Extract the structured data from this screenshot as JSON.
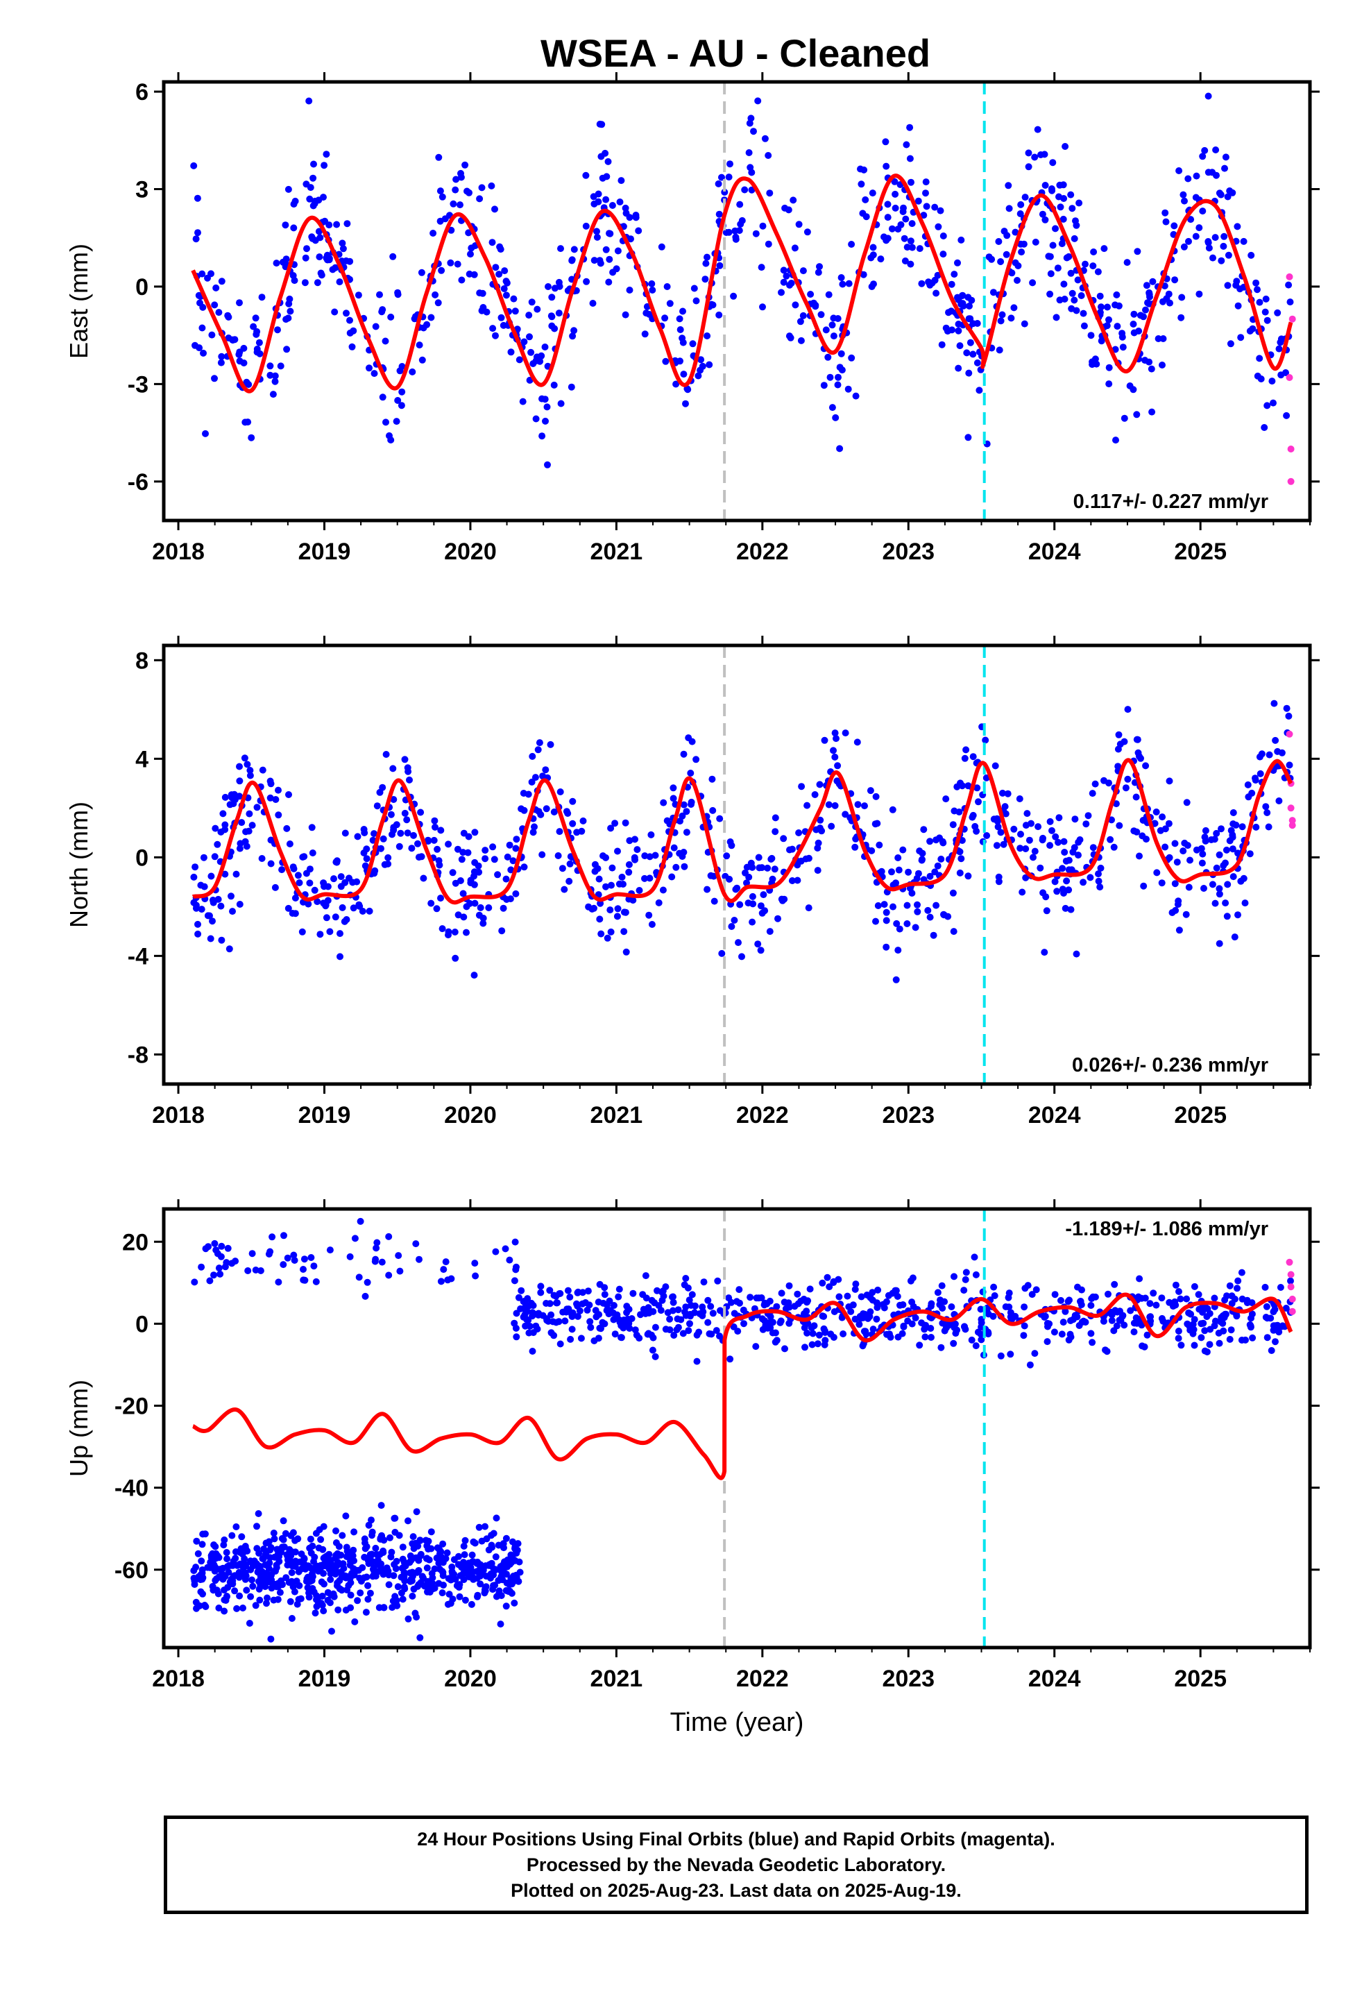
{
  "title": "WSEA  - AU - Cleaned",
  "colors": {
    "final_orbits": "#0000ff",
    "rapid_orbits": "#ff33cc",
    "model": "#ff0000",
    "antenna_change": "#c0c0c0",
    "equipment_change": "#00e5ee"
  },
  "footer": {
    "line1": "24 Hour Positions Using Final Orbits (blue) and Rapid Orbits (magenta).",
    "line2": "Processed by the Nevada Geodetic Laboratory.",
    "line3": "Plotted on 2025-Aug-23. Last data on 2025-Aug-19."
  },
  "chart_data": [
    {
      "type": "scatter",
      "component": "East",
      "ylabel": "East (mm)",
      "xlabel": "",
      "xlim": [
        2017.9,
        2025.75
      ],
      "ylim": [
        -7.2,
        6.3
      ],
      "xticks": [
        "2018",
        "2019",
        "2020",
        "2021",
        "2022",
        "2023",
        "2024",
        "2025"
      ],
      "yticks": [
        "6",
        "3",
        "0",
        "-3",
        "-6"
      ],
      "ytick_values": [
        6,
        3,
        0,
        -3,
        -6
      ],
      "rate_label": "0.117+/- 0.227 mm/yr",
      "rate_position": "bottom-right",
      "event_lines": [
        {
          "x": 2021.74,
          "kind": "antenna_change",
          "color": "#c0c0c0"
        },
        {
          "x": 2023.52,
          "kind": "equipment_change",
          "color": "#00e5ee"
        }
      ],
      "model_series": {
        "name": "",
        "x": [
          2018.1,
          2018.3,
          2018.5,
          2018.7,
          2018.9,
          2019.1,
          2019.3,
          2019.5,
          2019.7,
          2019.9,
          2020.1,
          2020.3,
          2020.5,
          2020.7,
          2020.9,
          2021.1,
          2021.3,
          2021.5,
          2021.74,
          2021.9,
          2022.1,
          2022.3,
          2022.5,
          2022.7,
          2022.9,
          2023.1,
          2023.3,
          2023.5,
          2023.52,
          2023.7,
          2023.9,
          2024.1,
          2024.3,
          2024.5,
          2024.7,
          2024.9,
          2025.1,
          2025.3,
          2025.5,
          2025.62
        ],
        "y": [
          0.5,
          -1.5,
          -3.2,
          -0.3,
          2.1,
          0.7,
          -1.6,
          -3.1,
          -0.2,
          2.2,
          0.9,
          -1.4,
          -3.0,
          -0.1,
          2.3,
          1.1,
          -1.3,
          -2.9,
          2.2,
          3.3,
          1.6,
          -0.5,
          -2.0,
          1.0,
          3.4,
          1.9,
          -0.4,
          -1.9,
          -2.3,
          0.8,
          2.8,
          1.3,
          -1.0,
          -2.6,
          -0.3,
          2.1,
          2.5,
          0.3,
          -2.5,
          -1.1
        ]
      },
      "observations": {
        "name": "Final Orbits",
        "description_pattern": "daily positions scattered ~±1.5 mm around the seasonal model",
        "start": 2018.1,
        "end": 2025.62,
        "scatter_mm": 1.2
      },
      "rapid_points": {
        "x": [
          2025.61,
          2025.61,
          2025.62,
          2025.62,
          2025.63
        ],
        "y": [
          0.3,
          -2.8,
          -5.0,
          -6.0,
          -1.0
        ]
      }
    },
    {
      "type": "scatter",
      "component": "North",
      "ylabel": "North (mm)",
      "xlabel": "",
      "xlim": [
        2017.9,
        2025.75
      ],
      "ylim": [
        -9.2,
        8.6
      ],
      "xticks": [
        "2018",
        "2019",
        "2020",
        "2021",
        "2022",
        "2023",
        "2024",
        "2025"
      ],
      "yticks": [
        "8",
        "4",
        "0",
        "-4",
        "-8"
      ],
      "ytick_values": [
        8,
        4,
        0,
        -4,
        -8
      ],
      "rate_label": "0.026+/- 0.236 mm/yr",
      "rate_position": "bottom-right",
      "event_lines": [
        {
          "x": 2021.74,
          "kind": "antenna_change",
          "color": "#c0c0c0"
        },
        {
          "x": 2023.52,
          "kind": "equipment_change",
          "color": "#00e5ee"
        }
      ],
      "model_series": {
        "name": "",
        "x": [
          2018.1,
          2018.25,
          2018.4,
          2018.52,
          2018.7,
          2018.85,
          2019.0,
          2019.25,
          2019.4,
          2019.52,
          2019.7,
          2019.85,
          2020.0,
          2020.25,
          2020.4,
          2020.52,
          2020.7,
          2020.85,
          2021.0,
          2021.25,
          2021.4,
          2021.52,
          2021.74,
          2021.9,
          2022.1,
          2022.25,
          2022.4,
          2022.52,
          2022.7,
          2022.85,
          2023.0,
          2023.25,
          2023.4,
          2023.52,
          2023.7,
          2023.85,
          2024.0,
          2024.25,
          2024.4,
          2024.52,
          2024.7,
          2024.85,
          2025.0,
          2025.25,
          2025.4,
          2025.52,
          2025.62
        ],
        "y": [
          -1.6,
          -1.2,
          1.5,
          3.0,
          0.2,
          -1.6,
          -1.5,
          -1.3,
          1.5,
          3.1,
          0.3,
          -1.7,
          -1.6,
          -1.3,
          1.5,
          3.1,
          0.3,
          -1.6,
          -1.5,
          -1.3,
          1.5,
          3.1,
          -1.5,
          -1.2,
          -1.1,
          0.2,
          2.0,
          3.4,
          0.3,
          -1.2,
          -1.1,
          -0.7,
          2.0,
          3.8,
          0.5,
          -0.8,
          -0.7,
          -0.4,
          2.3,
          3.9,
          0.6,
          -0.9,
          -0.7,
          -0.3,
          2.5,
          3.9,
          3.0
        ]
      },
      "observations": {
        "name": "Final Orbits",
        "description_pattern": "daily positions scattered ~±1.5 mm around the seasonal model",
        "start": 2018.1,
        "end": 2025.62,
        "scatter_mm": 1.3
      },
      "rapid_points": {
        "x": [
          2025.61,
          2025.62,
          2025.62,
          2025.63,
          2025.63
        ],
        "y": [
          5.0,
          3.0,
          2.0,
          1.5,
          1.3
        ]
      }
    },
    {
      "type": "scatter",
      "component": "Up",
      "ylabel": "Up (mm)",
      "xlabel": "Time (year)",
      "xlim": [
        2017.9,
        2025.75
      ],
      "ylim": [
        -79,
        28
      ],
      "xticks": [
        "2018",
        "2019",
        "2020",
        "2021",
        "2022",
        "2023",
        "2024",
        "2025"
      ],
      "yticks": [
        "20",
        "0",
        "-20",
        "-40",
        "-60"
      ],
      "ytick_values": [
        20,
        0,
        -20,
        -40,
        -60
      ],
      "rate_label": "-1.189+/- 1.086 mm/yr",
      "rate_position": "top-right",
      "event_lines": [
        {
          "x": 2021.74,
          "kind": "antenna_change",
          "color": "#c0c0c0"
        },
        {
          "x": 2023.52,
          "kind": "equipment_change",
          "color": "#00e5ee"
        }
      ],
      "model_series": {
        "name": "",
        "x": [
          2018.1,
          2018.2,
          2018.4,
          2018.6,
          2018.8,
          2019.0,
          2019.2,
          2019.4,
          2019.6,
          2019.8,
          2020.0,
          2020.2,
          2020.4,
          2020.6,
          2020.8,
          2021.0,
          2021.2,
          2021.4,
          2021.6,
          2021.74,
          2021.741,
          2021.9,
          2022.1,
          2022.3,
          2022.5,
          2022.7,
          2022.9,
          2023.1,
          2023.3,
          2023.5,
          2023.7,
          2023.9,
          2024.1,
          2024.3,
          2024.5,
          2024.7,
          2024.9,
          2025.1,
          2025.3,
          2025.5,
          2025.62
        ],
        "y": [
          -25,
          -26,
          -21,
          -30,
          -27,
          -26,
          -29,
          -22,
          -31,
          -28,
          -27,
          -29,
          -23,
          -33,
          -28,
          -27,
          -29,
          -24,
          -32,
          -36,
          -4,
          2,
          3,
          1,
          5,
          -4,
          1,
          3,
          1,
          6,
          0,
          3,
          4,
          2,
          7,
          -3,
          4,
          5,
          3,
          6,
          -2
        ]
      },
      "observation_groups": [
        {
          "start": 2018.1,
          "end": 2020.35,
          "center": 15,
          "spread": 4,
          "density": "sparse"
        },
        {
          "start": 2018.1,
          "end": 2020.35,
          "center": -60,
          "spread": 5,
          "density": "dense"
        },
        {
          "start": 2020.3,
          "end": 2025.62,
          "center": 2,
          "spread": 4,
          "density": "dense"
        }
      ],
      "rapid_points": {
        "x": [
          2025.61,
          2025.62,
          2025.62,
          2025.63,
          2025.63
        ],
        "y": [
          15,
          12,
          9,
          6,
          3
        ]
      }
    }
  ]
}
